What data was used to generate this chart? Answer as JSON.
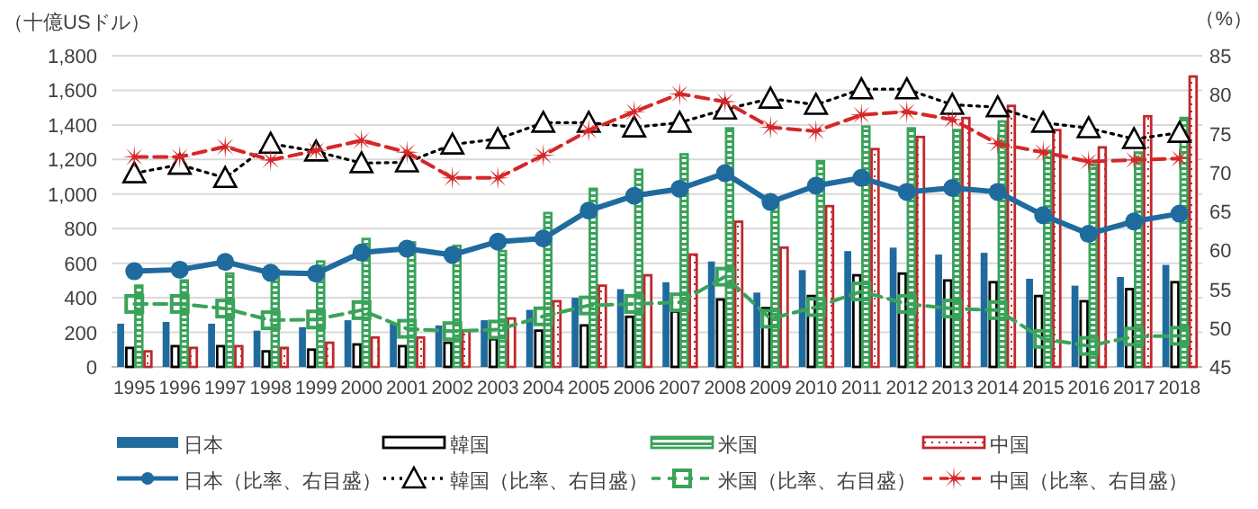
{
  "chart_data": {
    "type": "bar",
    "ylabel": "（十億USドル）",
    "y2label": "（%）",
    "categories": [
      "1995",
      "1996",
      "1997",
      "1998",
      "1999",
      "2000",
      "2001",
      "2002",
      "2003",
      "2004",
      "2005",
      "2006",
      "2007",
      "2008",
      "2009",
      "2010",
      "2011",
      "2012",
      "2013",
      "2014",
      "2015",
      "2016",
      "2017",
      "2018"
    ],
    "series": [
      {
        "name": "日本",
        "color": "#1f6b9e",
        "values": [
          250,
          260,
          250,
          210,
          230,
          270,
          250,
          240,
          270,
          330,
          400,
          450,
          490,
          610,
          430,
          560,
          670,
          690,
          650,
          660,
          510,
          470,
          520,
          590
        ]
      },
      {
        "name": "韓国",
        "color": "#000000",
        "values": [
          110,
          120,
          120,
          90,
          100,
          130,
          120,
          140,
          160,
          210,
          240,
          290,
          320,
          390,
          340,
          410,
          530,
          540,
          500,
          490,
          410,
          380,
          450,
          490
        ]
      },
      {
        "name": "米国",
        "color": "#3aa35a",
        "values": [
          470,
          500,
          540,
          560,
          610,
          740,
          720,
          700,
          670,
          890,
          1030,
          1140,
          1230,
          1380,
          950,
          1190,
          1390,
          1380,
          1370,
          1420,
          1250,
          1170,
          1240,
          1440
        ]
      },
      {
        "name": "中国",
        "color": "#c0282d",
        "values": [
          90,
          110,
          120,
          110,
          140,
          170,
          170,
          210,
          280,
          380,
          470,
          530,
          650,
          840,
          690,
          930,
          1260,
          1330,
          1440,
          1510,
          1370,
          1270,
          1450,
          1680
        ]
      },
      {
        "name": "日本（比率、右目盛）",
        "type": "line",
        "axis": "y2",
        "color": "#1f6b9e",
        "marker": "circle",
        "line_style": "solid",
        "values": [
          57.3,
          57.5,
          58.5,
          57.1,
          57.0,
          59.7,
          60.2,
          59.4,
          61.1,
          61.5,
          65.1,
          67.0,
          67.9,
          69.9,
          66.2,
          68.3,
          69.3,
          67.5,
          68.0,
          67.5,
          64.5,
          62.1,
          63.7,
          64.7
        ]
      },
      {
        "name": "韓国（比率、右目盛）",
        "type": "line",
        "axis": "y2",
        "color": "#000000",
        "marker": "triangle",
        "line_style": "dotted",
        "values": [
          69.9,
          71.0,
          69.3,
          73.7,
          72.7,
          71.2,
          71.3,
          73.6,
          74.3,
          76.4,
          76.4,
          75.8,
          76.4,
          78.1,
          79.5,
          78.7,
          80.7,
          80.7,
          78.7,
          78.4,
          76.4,
          75.7,
          74.3,
          75.1
        ]
      },
      {
        "name": "米国（比率、右目盛）",
        "type": "line",
        "axis": "y2",
        "color": "#3aa35a",
        "marker": "square",
        "line_style": "dashed",
        "values": [
          53.1,
          53.1,
          52.5,
          51.0,
          51.1,
          52.3,
          49.9,
          49.6,
          49.8,
          51.5,
          52.9,
          53.1,
          53.3,
          56.6,
          51.2,
          52.7,
          54.7,
          53.1,
          52.5,
          52.3,
          48.6,
          47.7,
          48.9,
          49.0
        ]
      },
      {
        "name": "中国（比率、右目盛）",
        "type": "line",
        "axis": "y2",
        "color": "#d62728",
        "marker": "star",
        "line_style": "dashed",
        "values": [
          72.0,
          72.0,
          73.3,
          71.6,
          72.8,
          74.1,
          72.6,
          69.3,
          69.3,
          72.2,
          75.4,
          77.8,
          80.1,
          79.1,
          75.8,
          75.3,
          77.4,
          77.8,
          76.8,
          73.7,
          72.6,
          71.4,
          71.6,
          71.8
        ]
      }
    ],
    "ylim": [
      0,
      1800
    ],
    "yticks": [
      0,
      200,
      400,
      600,
      800,
      {
        "value": 1000,
        "label": "1,000"
      },
      {
        "value": 1200,
        "label": "1,200"
      },
      {
        "value": 1400,
        "label": "1,400"
      },
      {
        "value": 1600,
        "label": "1,600"
      },
      {
        "value": 1800,
        "label": "1,800"
      }
    ],
    "y2lim": [
      45,
      85
    ],
    "y2ticks": [
      45,
      50,
      55,
      60,
      65,
      70,
      75,
      80,
      85
    ],
    "grid": "y",
    "legend": "bottom"
  }
}
